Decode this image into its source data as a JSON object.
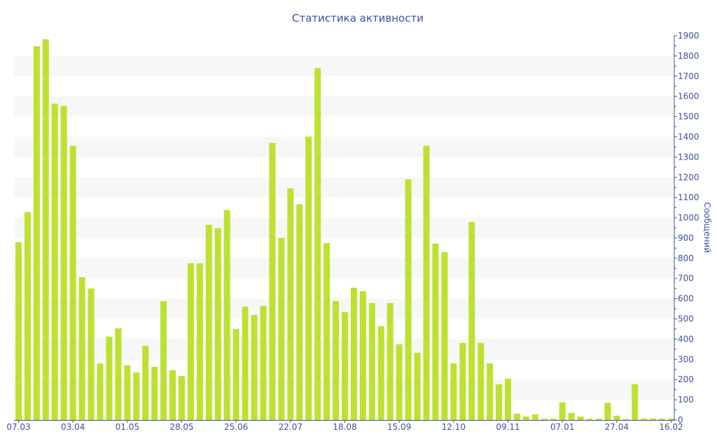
{
  "chart_data": {
    "type": "bar",
    "title": "Статистика активности",
    "xlabel": "",
    "ylabel": "Сообщений",
    "ylim": [
      0,
      1900
    ],
    "y_ticks": [
      0,
      100,
      200,
      300,
      400,
      500,
      600,
      700,
      800,
      900,
      1000,
      1100,
      1200,
      1300,
      1400,
      1500,
      1600,
      1700,
      1800,
      1900
    ],
    "y_axis_side": "right",
    "grid": "alternating horizontal bands",
    "bar_color": "#bde131",
    "band_color": "#f7f7f7",
    "axis_color": "#3d4f9a",
    "x_ticks": [
      {
        "index": 0,
        "label": "07.03"
      },
      {
        "index": 6,
        "label": "03.04"
      },
      {
        "index": 12,
        "label": "01.05"
      },
      {
        "index": 18,
        "label": "28.05"
      },
      {
        "index": 24,
        "label": "25.06"
      },
      {
        "index": 30,
        "label": "22.07"
      },
      {
        "index": 36,
        "label": "18.08"
      },
      {
        "index": 42,
        "label": "15.09"
      },
      {
        "index": 48,
        "label": "12.10"
      },
      {
        "index": 54,
        "label": "09.11"
      },
      {
        "index": 60,
        "label": "07.01"
      },
      {
        "index": 66,
        "label": "27.04"
      },
      {
        "index": 72,
        "label": "16.02"
      }
    ],
    "values": [
      879,
      1028,
      1848,
      1882,
      1564,
      1553,
      1356,
      706,
      650,
      280,
      412,
      453,
      270,
      235,
      367,
      263,
      588,
      246,
      218,
      775,
      775,
      965,
      948,
      1038,
      450,
      560,
      519,
      564,
      1370,
      900,
      1145,
      1066,
      1401,
      1740,
      875,
      588,
      533,
      654,
      637,
      578,
      464,
      578,
      374,
      1190,
      332,
      1356,
      872,
      830,
      280,
      381,
      979,
      381,
      280,
      176,
      204,
      31,
      17,
      28,
      7,
      7,
      87,
      35,
      17,
      6,
      6,
      85,
      21,
      5,
      177,
      7,
      7,
      7,
      7
    ]
  }
}
